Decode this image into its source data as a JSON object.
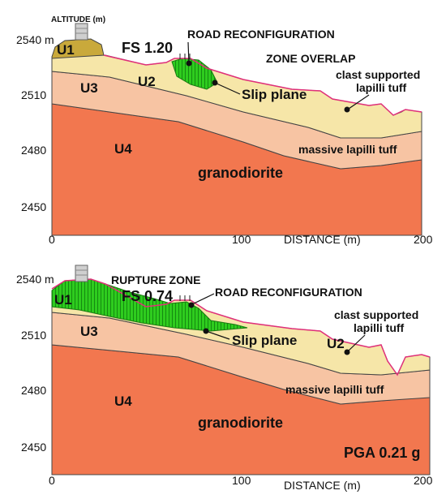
{
  "colors": {
    "granodiorite": "#f2774f",
    "massive_lapilli_tuff": "#f7c4a3",
    "clast_supported_lapilli_tuff": "#f6e6a8",
    "U1": "#c9a93b",
    "slip_mass": "#2ecc1e",
    "surface_line": "#e0307a",
    "outline": "#444444"
  },
  "top_panel": {
    "altitude_label": "ALTITUDE (m)",
    "y_ticks": [
      "2540 m",
      "2510",
      "2480",
      "2450"
    ],
    "x_ticks": [
      "0",
      "100",
      "200"
    ],
    "x_axis_label": "DISTANCE (m)",
    "fs_label": "FS 1.20",
    "road_label": "ROAD RECONFIGURATION",
    "zone_overlap_label": "ZONE OVERLAP",
    "slip_plane_label": "Slip plane",
    "clast_label_line1": "clast supported",
    "clast_label_line2": "lapilli tuff",
    "massive_label": "massive lapilli tuff",
    "granodiorite_label": "granodiorite",
    "units": [
      "U1",
      "U2",
      "U3",
      "U4"
    ]
  },
  "bottom_panel": {
    "rupture_label": "RUPTURE ZONE",
    "y_ticks": [
      "2540 m",
      "2510",
      "2480",
      "2450"
    ],
    "x_ticks": [
      "0",
      "100",
      "200"
    ],
    "x_axis_label": "DISTANCE (m)",
    "fs_label": "FS 0.74",
    "road_label": "ROAD RECONFIGURATION",
    "slip_plane_label": "Slip plane",
    "clast_label_line1": "clast supported",
    "clast_label_line2": "lapilli tuff",
    "massive_label": "massive lapilli tuff",
    "granodiorite_label": "granodiorite",
    "pga_label": "PGA 0.21 g",
    "units": [
      "U1",
      "U2",
      "U3",
      "U4"
    ]
  }
}
